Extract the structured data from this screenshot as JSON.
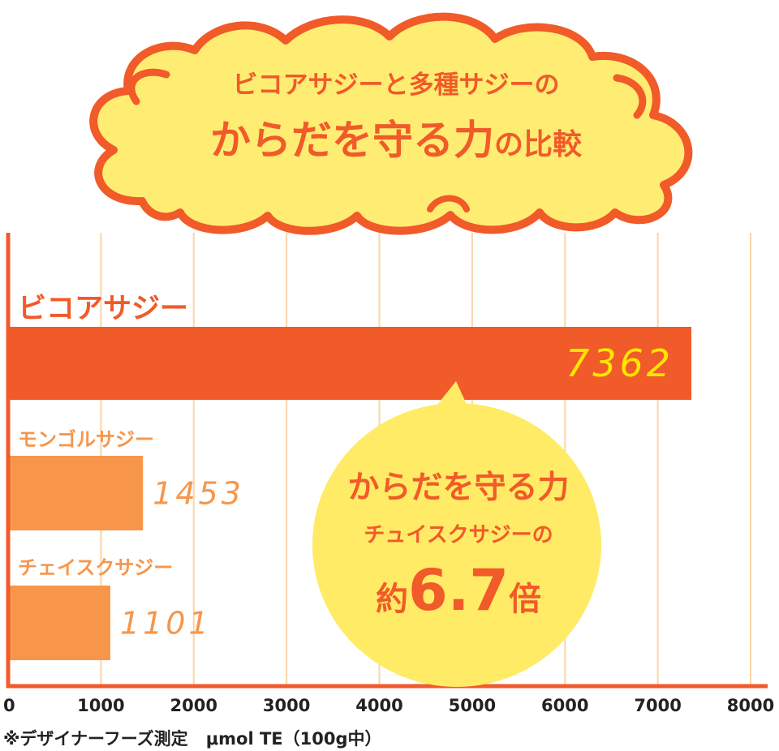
{
  "header": {
    "line1": "ビコアサジーと多種サジーの",
    "line2_main": "からだを守る力",
    "line2_suffix": "の比較"
  },
  "callout": {
    "line1": "からだを守る力",
    "line2": "チュイスクサジーの",
    "prefix": "約",
    "multiplier": "6.7",
    "suffix": "倍"
  },
  "footnote": {
    "source": "※デザイナーフーズ測定",
    "unit": "μmol TE（100g中）"
  },
  "colors": {
    "accent": "#f15a29",
    "bar_secondary": "#f7964a",
    "cloud_fill": "#ffed73",
    "callout_fill": "#ffeb66",
    "value_text_primary": "#ffe600",
    "gridline": "#fbd5a5"
  },
  "chart_data": {
    "type": "bar",
    "orientation": "horizontal",
    "categories": [
      "ビコアサジー",
      "モンゴルサジー",
      "チェイスクサジー"
    ],
    "values": [
      7362,
      1453,
      1101
    ],
    "value_labels": [
      "7362",
      "1453",
      "1101"
    ],
    "xlim": [
      0,
      8000
    ],
    "x_ticks": [
      0,
      1000,
      2000,
      3000,
      4000,
      5000,
      6000,
      7000,
      8000
    ],
    "x_tick_labels": [
      "0",
      "1000",
      "2000",
      "3000",
      "4000",
      "5000",
      "6000",
      "7000",
      "8000"
    ],
    "grid": true
  }
}
